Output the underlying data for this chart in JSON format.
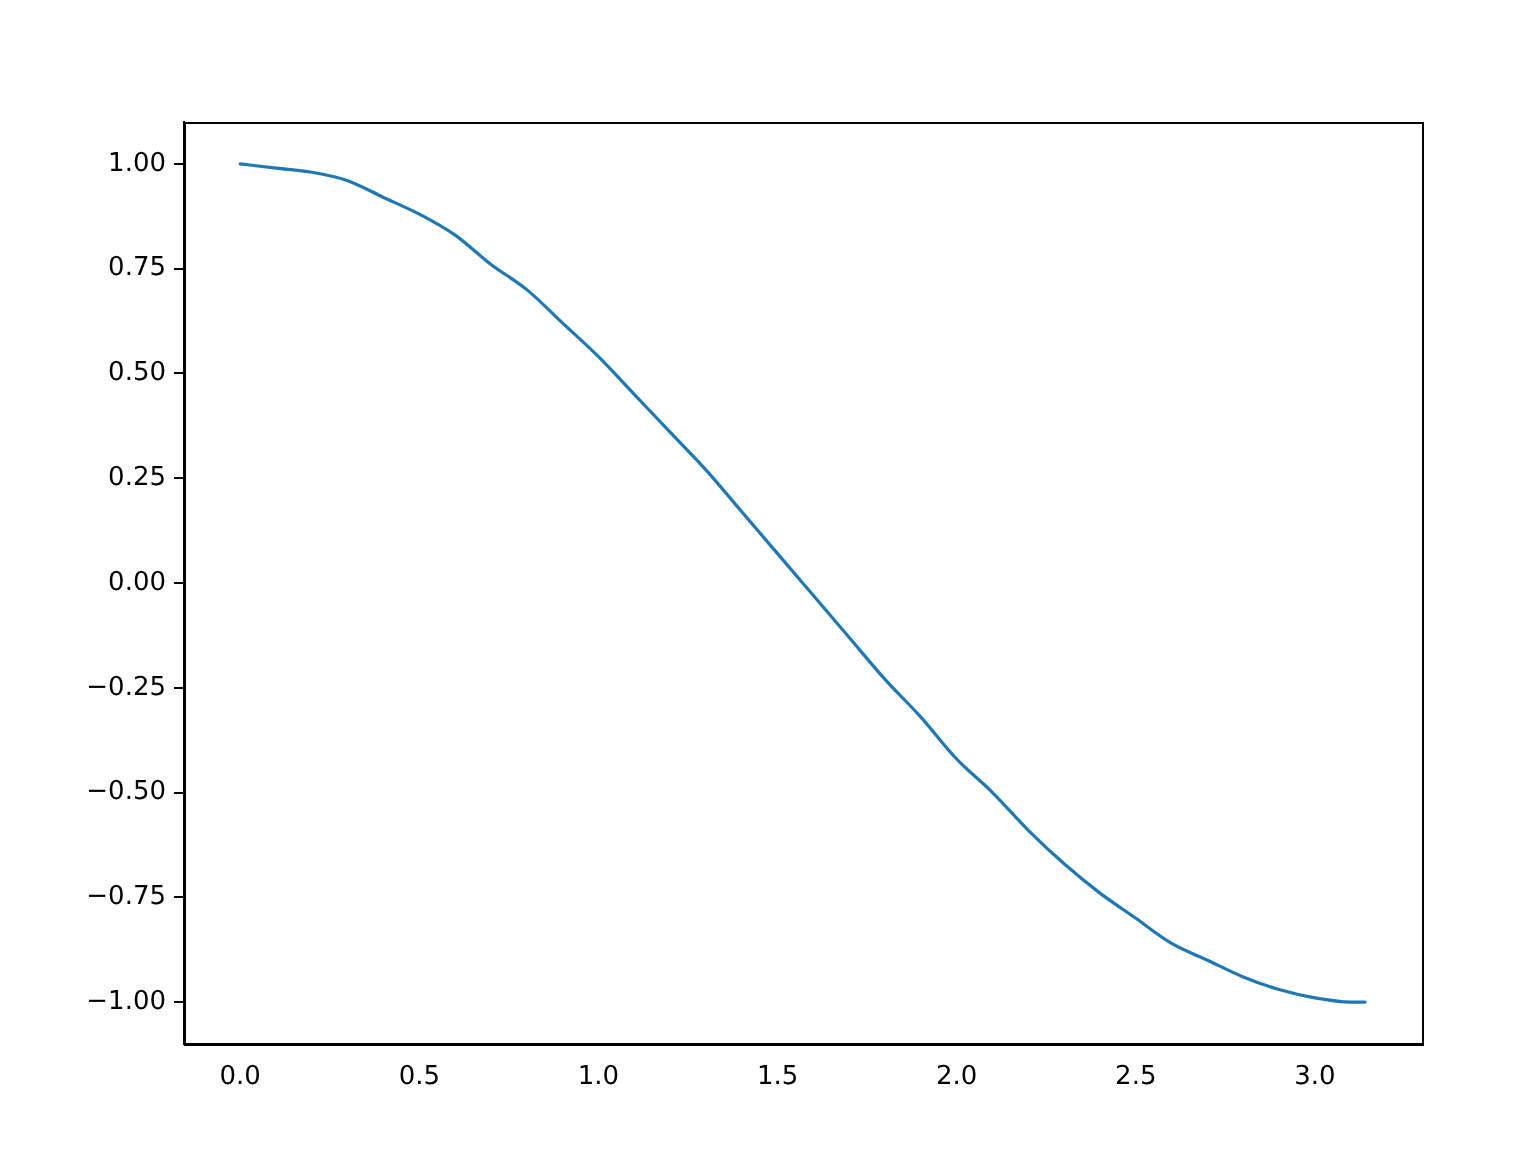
{
  "chart_data": {
    "type": "line",
    "x": [
      0,
      0.1,
      0.2,
      0.3,
      0.4,
      0.5,
      0.6,
      0.7,
      0.8,
      0.9,
      1.0,
      1.1,
      1.2,
      1.3,
      1.4,
      1.5,
      1.6,
      1.7,
      1.8,
      1.9,
      2.0,
      2.1,
      2.2,
      2.3,
      2.4,
      2.5,
      2.6,
      2.7,
      2.8,
      2.9,
      3.0,
      3.1,
      3.14
    ],
    "series": [
      {
        "color": "#1f77b4",
        "values": [
          1.0,
          0.99,
          0.98,
          0.96,
          0.92,
          0.88,
          0.83,
          0.76,
          0.7,
          0.62,
          0.54,
          0.45,
          0.36,
          0.27,
          0.17,
          0.07,
          -0.03,
          -0.13,
          -0.23,
          -0.32,
          -0.42,
          -0.5,
          -0.59,
          -0.67,
          -0.74,
          -0.8,
          -0.86,
          -0.9,
          -0.94,
          -0.97,
          -0.99,
          -1.0,
          -1.0
        ]
      }
    ],
    "xlim": [
      -0.157,
      3.299
    ],
    "ylim": [
      -1.1,
      1.1
    ],
    "xticks": [
      {
        "value": 0,
        "label": "0.0"
      },
      {
        "value": 0.5,
        "label": "0.5"
      },
      {
        "value": 1,
        "label": "1.0"
      },
      {
        "value": 1.5,
        "label": "1.5"
      },
      {
        "value": 2,
        "label": "2.0"
      },
      {
        "value": 2.5,
        "label": "2.5"
      },
      {
        "value": 3,
        "label": "3.0"
      }
    ],
    "yticks": [
      {
        "value": 1,
        "label": "1.00"
      },
      {
        "value": 0.75,
        "label": "0.75"
      },
      {
        "value": 0.5,
        "label": "0.50"
      },
      {
        "value": 0.25,
        "label": "0.25"
      },
      {
        "value": 0,
        "label": "0.00"
      },
      {
        "value": -0.25,
        "label": "−0.25"
      },
      {
        "value": -0.5,
        "label": "−0.50"
      },
      {
        "value": -0.75,
        "label": "−0.75"
      },
      {
        "value": -1,
        "label": "−1.00"
      }
    ],
    "grid": false,
    "legend": false,
    "marker": "none",
    "line_style": "solid"
  }
}
